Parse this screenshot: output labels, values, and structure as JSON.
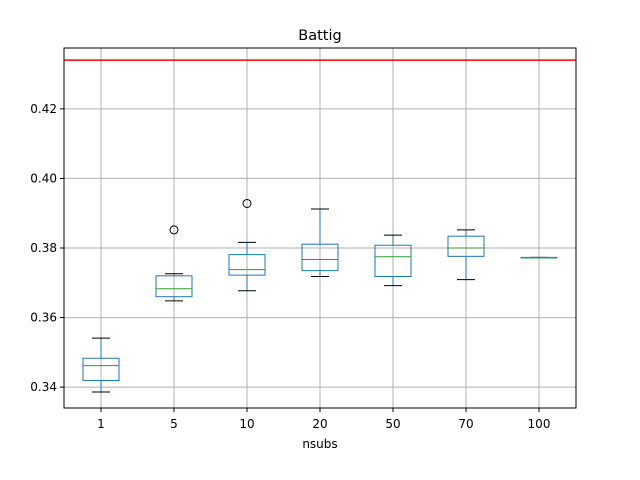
{
  "chart_data": {
    "type": "box",
    "title": "Battig",
    "xlabel": "nsubs",
    "ylabel": "",
    "categories": [
      "1",
      "5",
      "10",
      "20",
      "50",
      "70",
      "100"
    ],
    "ylim": [
      0.334,
      0.4375
    ],
    "yticks": [
      "0.34",
      "0.36",
      "0.38",
      "0.40",
      "0.42"
    ],
    "grid": true,
    "reference_line": {
      "value": 0.434,
      "color": "#ff0000"
    },
    "boxes": [
      {
        "category": "1",
        "whisker_low": 0.3386,
        "q1": 0.3419,
        "median": 0.3462,
        "q3": 0.3483,
        "whisker_high": 0.3541,
        "outliers": []
      },
      {
        "category": "5",
        "whisker_low": 0.3648,
        "q1": 0.366,
        "median": 0.3683,
        "q3": 0.372,
        "whisker_high": 0.3726,
        "outliers": [
          0.3852
        ]
      },
      {
        "category": "10",
        "whisker_low": 0.3677,
        "q1": 0.3722,
        "median": 0.3738,
        "q3": 0.3781,
        "whisker_high": 0.3816,
        "outliers": [
          0.3928
        ]
      },
      {
        "category": "20",
        "whisker_low": 0.3718,
        "q1": 0.3735,
        "median": 0.3767,
        "q3": 0.3811,
        "whisker_high": 0.3912,
        "outliers": []
      },
      {
        "category": "50",
        "whisker_low": 0.3692,
        "q1": 0.3718,
        "median": 0.3775,
        "q3": 0.3808,
        "whisker_high": 0.3837,
        "outliers": []
      },
      {
        "category": "70",
        "whisker_low": 0.3709,
        "q1": 0.3776,
        "median": 0.38,
        "q3": 0.3834,
        "whisker_high": 0.3852,
        "outliers": []
      },
      {
        "category": "100",
        "whisker_low": 0.3772,
        "q1": 0.3772,
        "median": 0.3772,
        "q3": 0.3773,
        "whisker_high": 0.3773,
        "outliers": []
      }
    ],
    "colors": {
      "box": "#1f77b4",
      "median": "#2ca02c",
      "whisker_cap": "#000000",
      "grid": "#b0b0b0"
    }
  }
}
